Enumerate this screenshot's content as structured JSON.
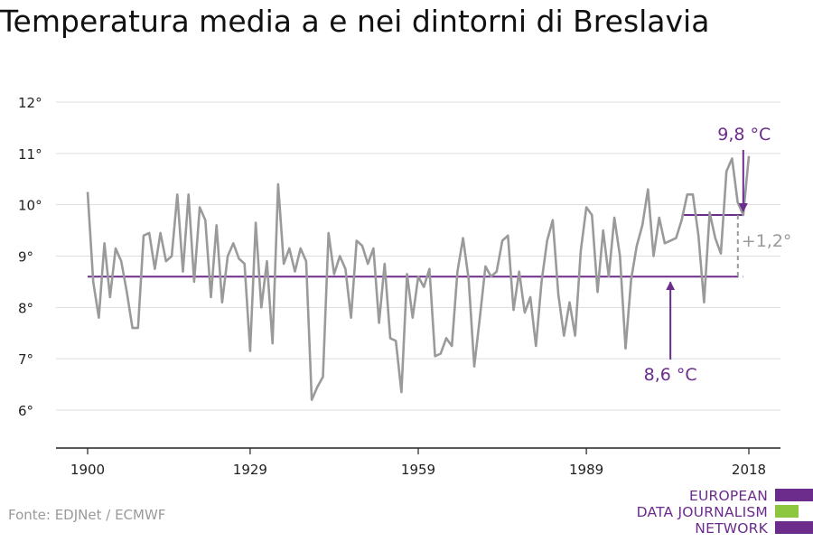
{
  "title": "Temperatura media a e nei dintorni di Breslavia",
  "source": "Fonte: EDJNet / ECMWF",
  "logo": {
    "lines": [
      "EUROPEAN",
      "DATA JOURNALISM",
      "NETWORK"
    ]
  },
  "colors": {
    "series": "#9a9a9a",
    "accent": "#6b2c8c",
    "logo_green": "#8dc63f",
    "grid": "#dddddd"
  },
  "chart_data": {
    "type": "line",
    "title": "Temperatura media a e nei dintorni di Breslavia",
    "xlabel": "",
    "ylabel": "",
    "xlim": [
      1900,
      2018
    ],
    "ylim": [
      6,
      12
    ],
    "x_ticks": [
      1900,
      1929,
      1959,
      1989,
      2018
    ],
    "x_tick_labels": [
      "1900",
      "1929",
      "1959",
      "1989",
      "2018"
    ],
    "y_ticks": [
      6,
      7,
      8,
      9,
      10,
      11,
      12
    ],
    "y_tick_labels": [
      "6°",
      "7°",
      "8°",
      "9°",
      "10°",
      "11°",
      "12°"
    ],
    "grid": true,
    "legend": "none",
    "series": [
      {
        "x": [
          1900,
          1901,
          1902,
          1903,
          1904,
          1905,
          1906,
          1907,
          1908,
          1909,
          1910,
          1911,
          1912,
          1913,
          1914,
          1915,
          1916,
          1917,
          1918,
          1919,
          1920,
          1921,
          1922,
          1923,
          1924,
          1925,
          1926,
          1927,
          1928,
          1929,
          1930,
          1931,
          1932,
          1933,
          1934,
          1935,
          1936,
          1937,
          1938,
          1939,
          1940,
          1941,
          1942,
          1943,
          1944,
          1945,
          1946,
          1947,
          1948,
          1949,
          1950,
          1951,
          1952,
          1953,
          1954,
          1955,
          1956,
          1957,
          1958,
          1959,
          1960,
          1961,
          1962,
          1963,
          1964,
          1965,
          1966,
          1967,
          1968,
          1969,
          1970,
          1971,
          1972,
          1973,
          1974,
          1975,
          1976,
          1977,
          1978,
          1979,
          1980,
          1981,
          1982,
          1983,
          1984,
          1985,
          1986,
          1987,
          1988,
          1989,
          1990,
          1991,
          1992,
          1993,
          1994,
          1995,
          1996,
          1997,
          1998,
          1999,
          2000,
          2001,
          2002,
          2003,
          2004,
          2005,
          2006,
          2007,
          2008,
          2009,
          2010,
          2011,
          2012,
          2013,
          2014,
          2015,
          2016,
          2017,
          2018
        ],
        "values": [
          10.25,
          8.5,
          7.8,
          9.25,
          8.2,
          9.15,
          8.9,
          8.3,
          7.6,
          7.6,
          9.4,
          9.45,
          8.75,
          9.45,
          8.9,
          9.0,
          10.2,
          8.7,
          10.2,
          8.5,
          9.95,
          9.7,
          8.2,
          9.6,
          8.1,
          9.0,
          9.25,
          8.95,
          8.85,
          7.15,
          9.65,
          8.0,
          8.9,
          7.3,
          10.4,
          8.85,
          9.15,
          8.7,
          9.15,
          8.9,
          6.2,
          6.45,
          6.65,
          9.45,
          8.65,
          9.0,
          8.75,
          7.8,
          9.3,
          9.2,
          8.85,
          9.15,
          7.7,
          8.85,
          7.4,
          7.35,
          6.35,
          8.65,
          7.8,
          8.6,
          8.4,
          8.75,
          7.05,
          7.1,
          7.4,
          7.25,
          8.7,
          9.35,
          8.55,
          6.85,
          7.8,
          8.8,
          8.6,
          8.7,
          9.3,
          9.4,
          7.95,
          8.7,
          7.9,
          8.2,
          7.25,
          8.5,
          9.3,
          9.7,
          8.25,
          7.45,
          8.1,
          7.45,
          9.1,
          9.95,
          9.8,
          8.3,
          9.5,
          8.6,
          9.75,
          9.0,
          7.2,
          8.55,
          9.2,
          9.6,
          10.3,
          9.0,
          9.75,
          9.25,
          9.3,
          9.35,
          9.7,
          10.2,
          10.2,
          9.4,
          8.1,
          9.85,
          9.35,
          9.05,
          10.65,
          10.9,
          10.05,
          9.8,
          10.95
        ]
      }
    ],
    "annotations": {
      "baseline": {
        "value": 8.6,
        "label": "8,6 °C",
        "x_start": 1900,
        "x_solid_end": 2015,
        "x_dashed_end": 2017
      },
      "recent": {
        "value": 9.8,
        "label": "9,8 °C",
        "x_start": 2006,
        "x_end": 2017
      },
      "difference": {
        "label": "+1,2°"
      }
    }
  }
}
